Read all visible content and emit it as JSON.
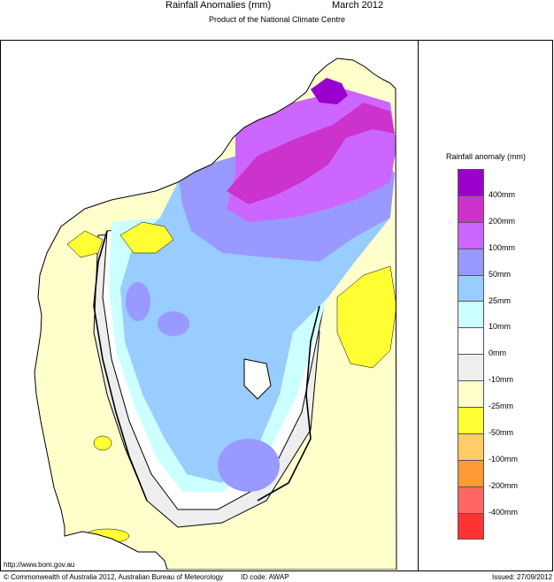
{
  "header": {
    "title": "Rainfall Anomalies (mm)",
    "period": "March 2012",
    "subtitle": "Product of the National Climate Centre"
  },
  "legend": {
    "title": "Rainfall anomaly (mm)",
    "classes": [
      {
        "color": "#9900cc"
      },
      {
        "color": "#cc33cc"
      },
      {
        "color": "#cc66ff"
      },
      {
        "color": "#9999ff"
      },
      {
        "color": "#99ccff"
      },
      {
        "color": "#ccffff"
      },
      {
        "color": "#ffffff"
      },
      {
        "color": "#eeeeee"
      },
      {
        "color": "#ffffcc"
      },
      {
        "color": "#ffff33"
      },
      {
        "color": "#ffcc66"
      },
      {
        "color": "#ff9933"
      },
      {
        "color": "#ff6666"
      },
      {
        "color": "#ff3333"
      }
    ],
    "labels": [
      "400mm",
      "200mm",
      "100mm",
      "50mm",
      "25mm",
      "10mm",
      "0mm",
      "-10mm",
      "-25mm",
      "-50mm",
      "-100mm",
      "-200mm",
      "-400mm"
    ]
  },
  "footer": {
    "url": "http://www.bom.gov.au",
    "copyright": "© Commonwealth of Australia 2012, Australian Bureau of Meteorology",
    "id_code": "ID code: AWAP",
    "issued": "Issued: 27/09/2012"
  }
}
